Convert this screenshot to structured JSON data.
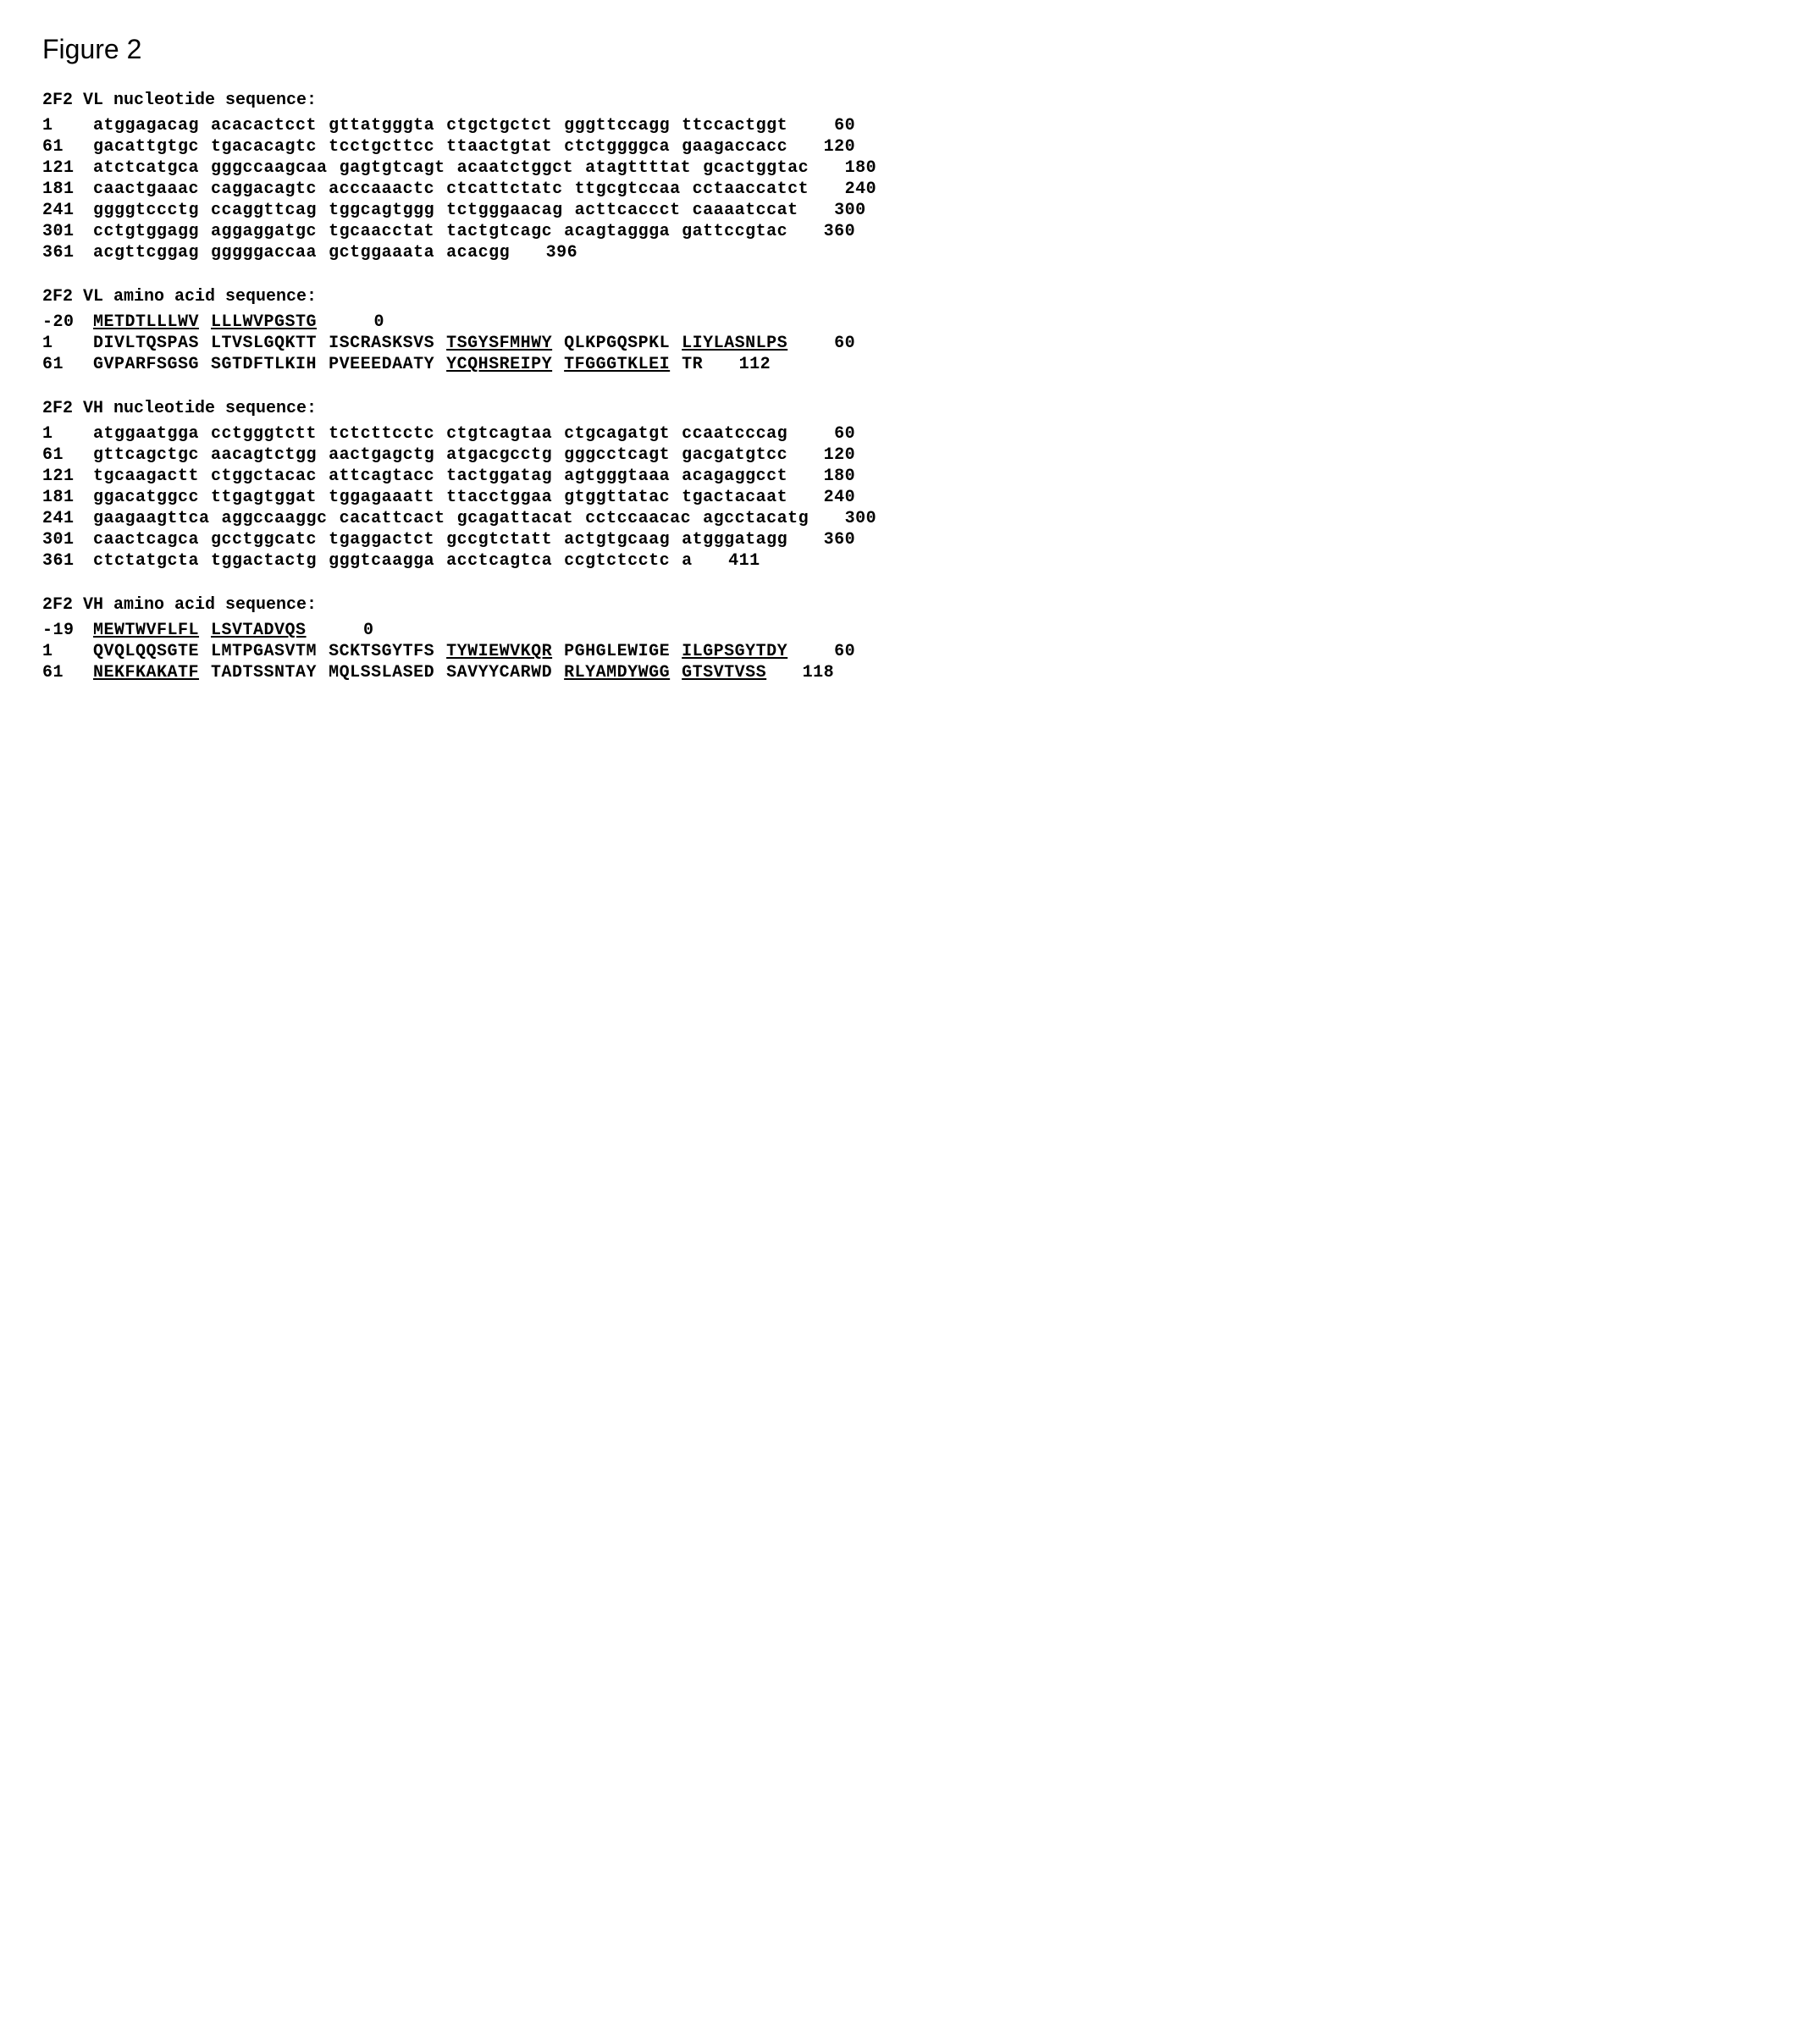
{
  "figure_title": "Figure 2",
  "font": {
    "mono_family": "Courier New",
    "sans_family": "Arial",
    "title_size_pt": 32,
    "section_size_pt": 20,
    "seq_size_pt": 20,
    "seq_weight": "bold"
  },
  "colors": {
    "background": "#ffffff",
    "text": "#000000"
  },
  "sections": [
    {
      "title": "2F2 VL nucleotide sequence:",
      "rows": [
        {
          "left": "1",
          "blocks": [
            {
              "t": "atggagacag"
            },
            {
              "t": "acacactcct"
            },
            {
              "t": "gttatgggta"
            },
            {
              "t": "ctgctgctct"
            },
            {
              "t": "gggttccagg"
            },
            {
              "t": "ttccactggt"
            }
          ],
          "right": "60"
        },
        {
          "left": "61",
          "blocks": [
            {
              "t": "gacattgtgc"
            },
            {
              "t": "tgacacagtc"
            },
            {
              "t": "tcctgcttcc"
            },
            {
              "t": "ttaactgtat"
            },
            {
              "t": "ctctggggca"
            },
            {
              "t": "gaagaccacc"
            }
          ],
          "right": "120"
        },
        {
          "left": "121",
          "blocks": [
            {
              "t": "atctcatgca"
            },
            {
              "t": "gggccaagcaa"
            },
            {
              "t": "gagtgtcagt"
            },
            {
              "t": "acaatctggct"
            },
            {
              "t": "atagttttat"
            },
            {
              "t": "gcactggtac"
            }
          ],
          "right": "180"
        },
        {
          "left": "181",
          "blocks": [
            {
              "t": "caactgaaac"
            },
            {
              "t": "caggacagtc"
            },
            {
              "t": "acccaaactc"
            },
            {
              "t": "ctcattctatc"
            },
            {
              "t": "ttgcgtccaa"
            },
            {
              "t": "cctaaccatct"
            }
          ],
          "right": "240"
        },
        {
          "left": "241",
          "blocks": [
            {
              "t": "ggggtccctg"
            },
            {
              "t": "ccaggttcag"
            },
            {
              "t": "tggcagtggg"
            },
            {
              "t": "tctgggaacag"
            },
            {
              "t": "acttcaccct"
            },
            {
              "t": "caaaatccat"
            }
          ],
          "right": "300"
        },
        {
          "left": "301",
          "blocks": [
            {
              "t": "cctgtggagg"
            },
            {
              "t": "aggaggatgc"
            },
            {
              "t": "tgcaacctat"
            },
            {
              "t": "tactgtcagc"
            },
            {
              "t": "acagtaggga"
            },
            {
              "t": "gattccgtac"
            }
          ],
          "right": "360"
        },
        {
          "left": "361",
          "blocks": [
            {
              "t": "acgttcggag"
            },
            {
              "t": "gggggaccaa"
            },
            {
              "t": "gctggaaata"
            },
            {
              "t": "acacgg"
            }
          ],
          "right": "396"
        }
      ]
    },
    {
      "title": "2F2 VL amino acid sequence:",
      "rows": [
        {
          "left": "-20",
          "blocks": [
            {
              "t": "METDTLLLWV",
              "u": true
            },
            {
              "t": "LLLWVPGSTG",
              "u": true
            }
          ],
          "right": "0"
        },
        {
          "left": "1",
          "blocks": [
            {
              "t": "DIVLTQSPAS"
            },
            {
              "t": "LTVSLGQKTT"
            },
            {
              "t": "ISCRASKSVS"
            },
            {
              "t": "TSGYSFMHWY",
              "u": true
            },
            {
              "t": "QLKPGQSPKL"
            },
            {
              "t": "LIYLASNLPS",
              "u": true
            }
          ],
          "right": "60"
        },
        {
          "left": "61",
          "blocks": [
            {
              "t": "GVPARFSGSG"
            },
            {
              "t": "SGTDFTLKIH"
            },
            {
              "t": "PVEEEDAATY"
            },
            {
              "t": "YCQHSREIPY",
              "u": true
            },
            {
              "t": "TFGGGTKLEI",
              "u": true
            },
            {
              "t": "TR"
            }
          ],
          "right": "112"
        }
      ]
    },
    {
      "title": "2F2 VH nucleotide sequence:",
      "rows": [
        {
          "left": "1",
          "blocks": [
            {
              "t": "atggaatgga"
            },
            {
              "t": "cctgggtctt"
            },
            {
              "t": "tctcttcctc"
            },
            {
              "t": "ctgtcagtaa"
            },
            {
              "t": "ctgcagatgt"
            },
            {
              "t": "ccaatcccag"
            }
          ],
          "right": "60"
        },
        {
          "left": "61",
          "blocks": [
            {
              "t": "gttcagctgc"
            },
            {
              "t": "aacagtctgg"
            },
            {
              "t": "aactgagctg"
            },
            {
              "t": "atgacgcctg"
            },
            {
              "t": "gggcctcagt"
            },
            {
              "t": "gacgatgtcc"
            }
          ],
          "right": "120"
        },
        {
          "left": "121",
          "blocks": [
            {
              "t": "tgcaagactt"
            },
            {
              "t": "ctggctacac"
            },
            {
              "t": "attcagtacc"
            },
            {
              "t": "tactggatag"
            },
            {
              "t": "agtgggtaaa"
            },
            {
              "t": "acagaggcct"
            }
          ],
          "right": "180"
        },
        {
          "left": "181",
          "blocks": [
            {
              "t": "ggacatggcc"
            },
            {
              "t": "ttgagtggat"
            },
            {
              "t": "tggagaaatt"
            },
            {
              "t": "ttacctggaa"
            },
            {
              "t": "gtggttatac"
            },
            {
              "t": "tgactacaat"
            }
          ],
          "right": "240"
        },
        {
          "left": "241",
          "blocks": [
            {
              "t": "gaagaagttca"
            },
            {
              "t": "aggccaaggc"
            },
            {
              "t": "cacattcact"
            },
            {
              "t": "gcagattacat"
            },
            {
              "t": "cctccaacac"
            },
            {
              "t": "agcctacatg"
            }
          ],
          "right": "300"
        },
        {
          "left": "301",
          "blocks": [
            {
              "t": "caactcagca"
            },
            {
              "t": "gcctggcatc"
            },
            {
              "t": "tgaggactct"
            },
            {
              "t": "gccgtctatt"
            },
            {
              "t": "actgtgcaag"
            },
            {
              "t": "atgggatagg"
            }
          ],
          "right": "360"
        },
        {
          "left": "361",
          "blocks": [
            {
              "t": "ctctatgcta"
            },
            {
              "t": "tggactactg"
            },
            {
              "t": "gggtcaagga"
            },
            {
              "t": "acctcagtca"
            },
            {
              "t": "ccgtctcctc"
            },
            {
              "t": "a"
            }
          ],
          "right": "411"
        }
      ]
    },
    {
      "title": "2F2 VH amino acid sequence:",
      "rows": [
        {
          "left": "-19",
          "blocks": [
            {
              "t": "MEWTWVFLFL",
              "u": true
            },
            {
              "t": "LSVTADVQS",
              "u": true
            }
          ],
          "right": "0"
        },
        {
          "left": "1",
          "blocks": [
            {
              "t": "QVQLQQSGTE"
            },
            {
              "t": "LMTPGASVTM"
            },
            {
              "t": "SCKTSGYTFS"
            },
            {
              "t": "TYWIEWVKQR",
              "u": true
            },
            {
              "t": "PGHGLEWIGE"
            },
            {
              "t": "ILGPSGYTDY",
              "u": true
            }
          ],
          "right": "60"
        },
        {
          "left": "61",
          "blocks": [
            {
              "t": "NEKFKAKATF",
              "u": true
            },
            {
              "t": "TADTSSNTAY"
            },
            {
              "t": "MQLSSLASED"
            },
            {
              "t": "SAVYYCARWD"
            },
            {
              "t": "RLYAMDYWGG",
              "u": true
            },
            {
              "t": "GTSVTVSS",
              "u": true
            }
          ],
          "right": "118"
        }
      ]
    }
  ]
}
